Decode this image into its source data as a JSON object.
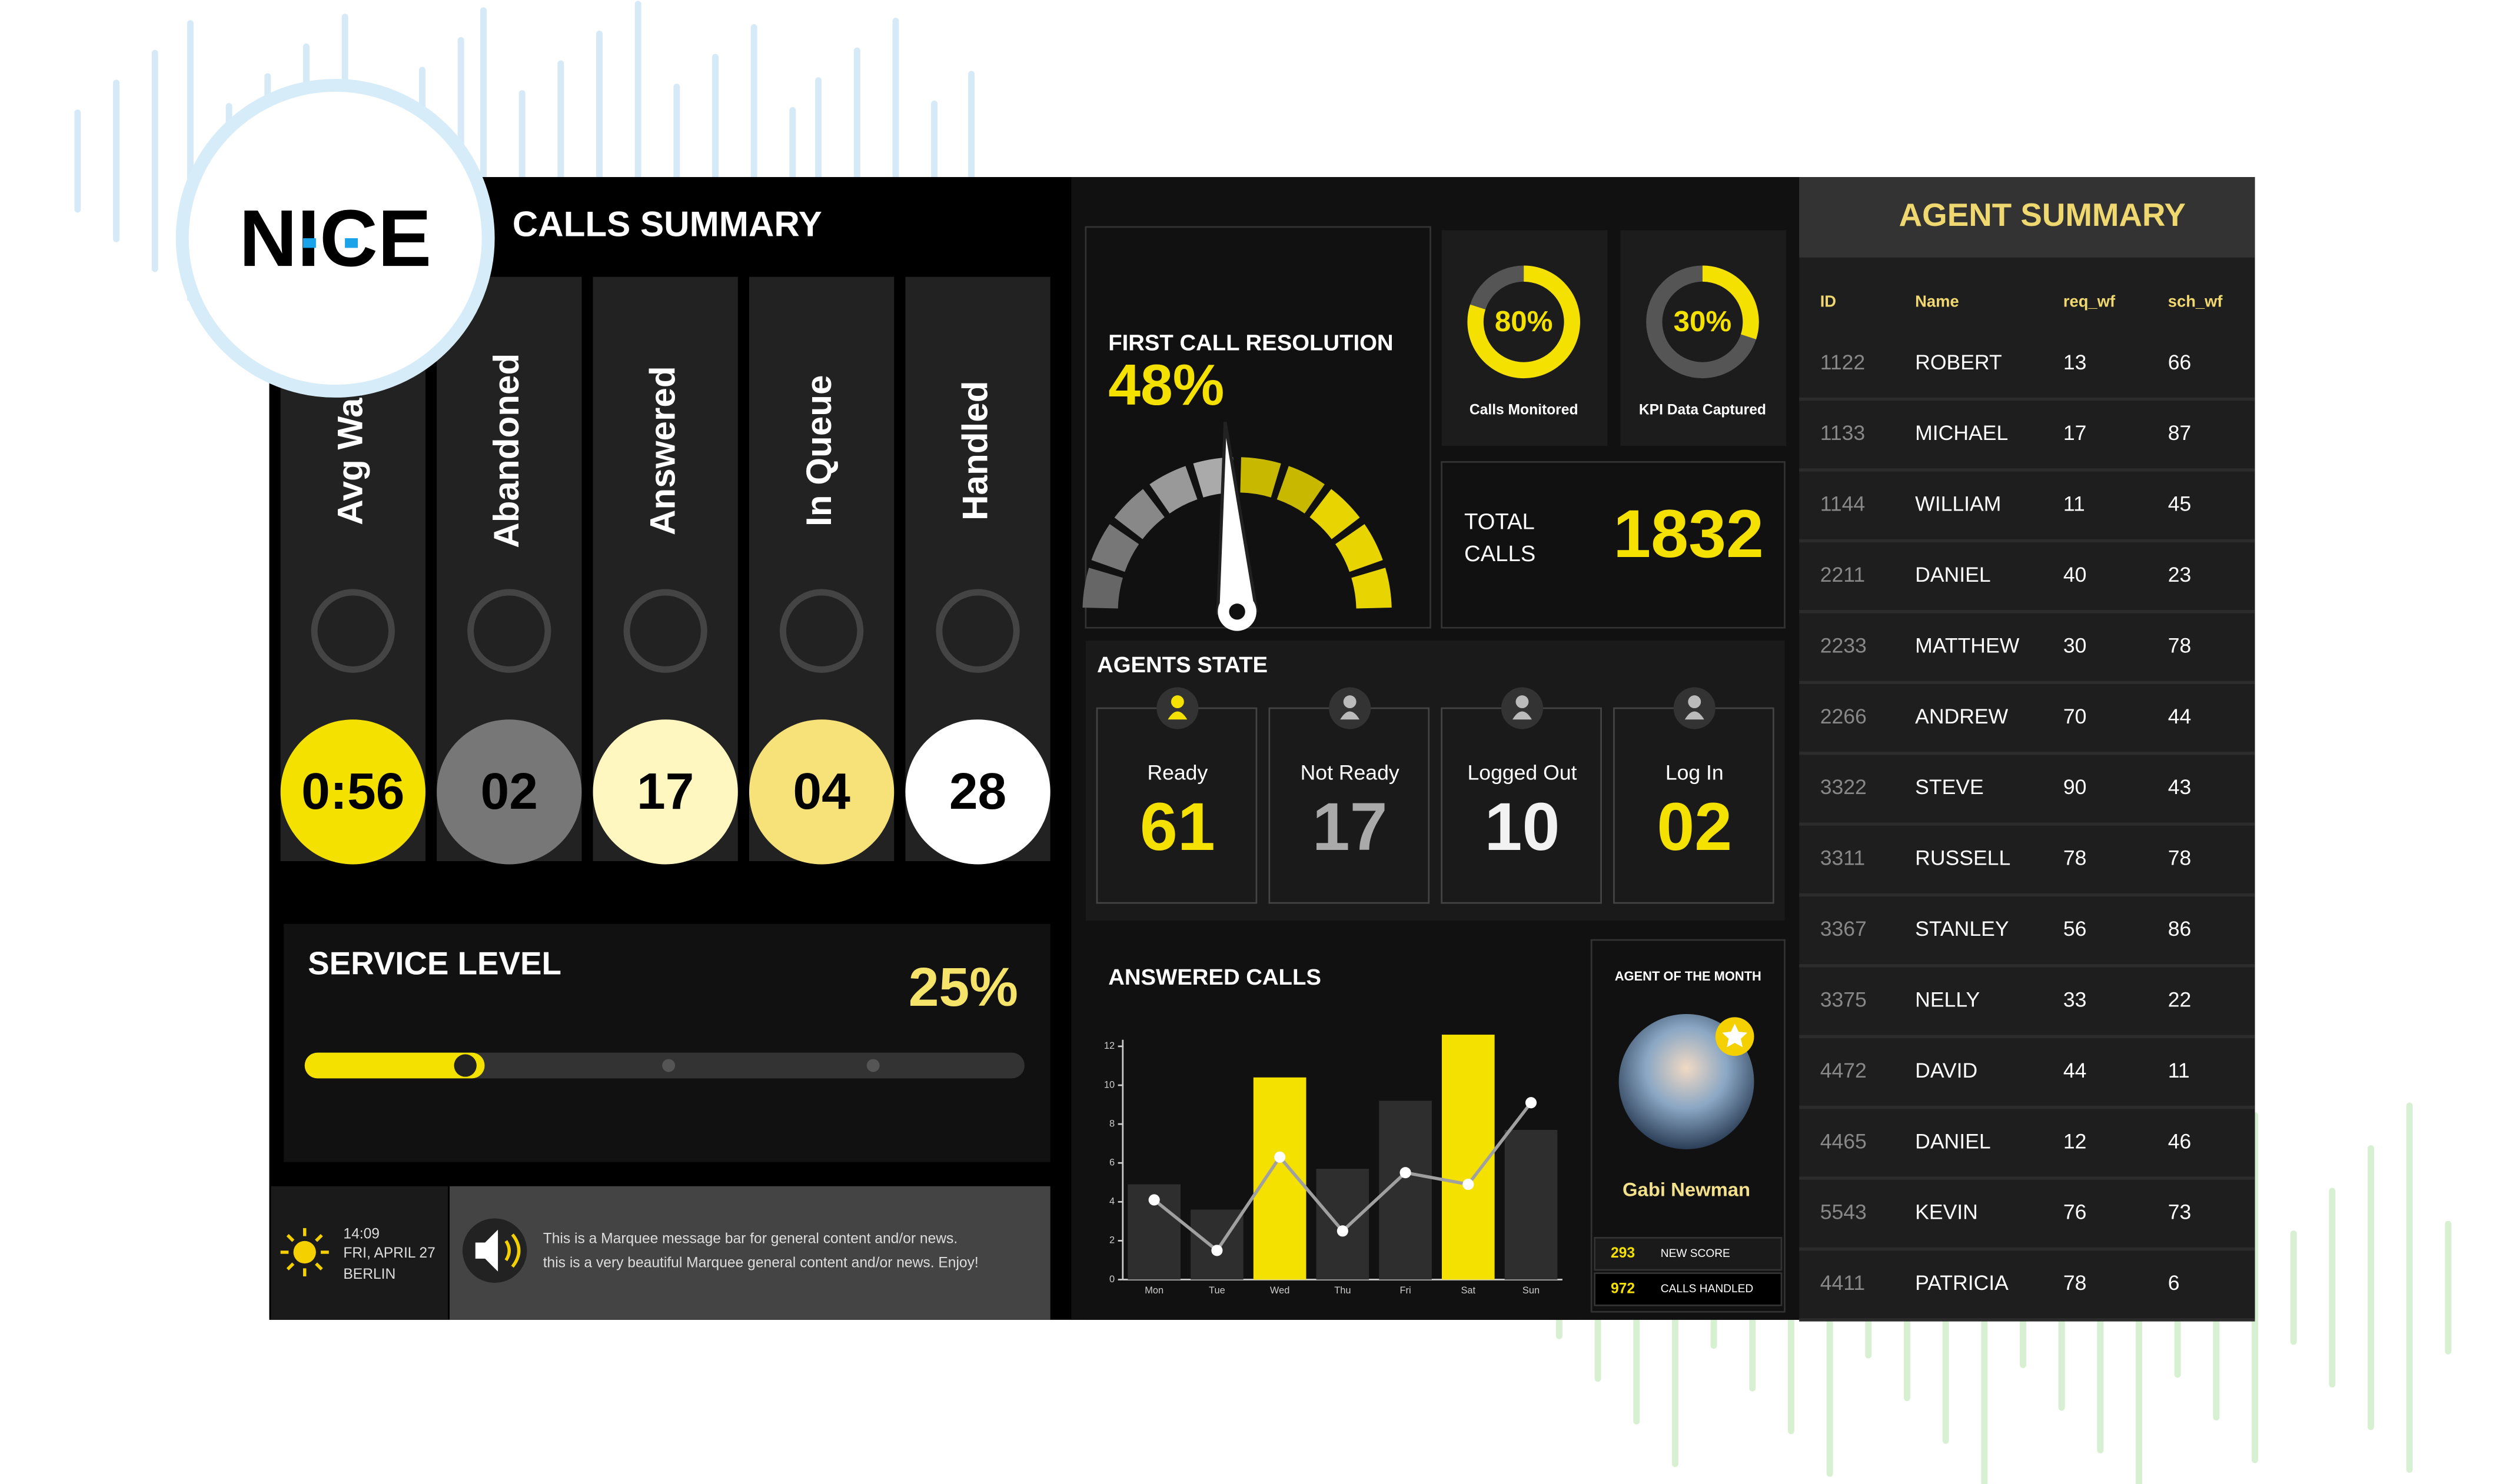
{
  "logo": "NICE",
  "calls_summary": {
    "title": "CALLS SUMMARY",
    "items": [
      {
        "label": "Avg Wait",
        "value": "0:56"
      },
      {
        "label": "Abandoned",
        "value": "02"
      },
      {
        "label": "Answered",
        "value": "17"
      },
      {
        "label": "In Queue",
        "value": "04"
      },
      {
        "label": "Handled",
        "value": "28"
      }
    ]
  },
  "first_call_resolution": {
    "title": "FIRST CALL RESOLUTION",
    "value": 48,
    "value_label": "48%"
  },
  "kpis": {
    "values": [
      80,
      30
    ],
    "value_labels": [
      "80%",
      "30%"
    ],
    "labels": [
      "Calls Monitored",
      "KPI Data Captured"
    ]
  },
  "total_calls": {
    "label_lines": [
      "TOTAL",
      "CALLS"
    ],
    "value": 1832
  },
  "service_level": {
    "title": "SERVICE LEVEL",
    "value": 25,
    "value_label": "25%"
  },
  "agents_state": {
    "title": "AGENTS STATE",
    "items": [
      {
        "label": "Ready",
        "value": "61"
      },
      {
        "label": "Not Ready",
        "value": "17"
      },
      {
        "label": "Logged Out",
        "value": "10"
      },
      {
        "label": "Log In",
        "value": "02"
      }
    ]
  },
  "chart_data": {
    "type": "bar",
    "title": "ANSWERED CALLS",
    "categories": [
      "Mon",
      "Tue",
      "Wed",
      "Thu",
      "Fri",
      "Sat",
      "Sun"
    ],
    "series": [
      {
        "type": "bar",
        "values": [
          4.9,
          3.6,
          10.4,
          5.7,
          9.2,
          12.6,
          7.7
        ],
        "colors": [
          "#2e2e2e",
          "#2e2e2e",
          "#f5e100",
          "#2e2e2e",
          "#2e2e2e",
          "#f5e100",
          "#2e2e2e"
        ]
      },
      {
        "type": "line",
        "color": "#a0a0a0",
        "values": [
          4.1,
          1.5,
          6.3,
          2.5,
          5.5,
          4.9,
          9.1
        ]
      }
    ],
    "ylim": [
      0,
      13
    ],
    "yticks": [
      0,
      2,
      4,
      6,
      8,
      10,
      12
    ]
  },
  "agent_of_the_month": {
    "title": "AGENT OF THE MONTH",
    "name": "Gabi Newman",
    "stats": [
      {
        "value": "293",
        "label": "NEW SCORE"
      },
      {
        "value": "972",
        "label": "CALLS HANDLED"
      }
    ]
  },
  "footer": {
    "time": "14:09",
    "date": "FRI, APRIL 27",
    "city": "BERLIN",
    "marquee": [
      "This is a Marquee message bar for general content and/or news.",
      "this is a very beautiful Marquee general content and/or news. Enjoy!"
    ]
  },
  "agent_summary": {
    "title": "AGENT SUMMARY",
    "columns": [
      "ID",
      "Name",
      "req_wf",
      "sch_wf"
    ],
    "rows": [
      [
        "1122",
        "ROBERT",
        "13",
        "66"
      ],
      [
        "1133",
        "MICHAEL",
        "17",
        "87"
      ],
      [
        "1144",
        "WILLIAM",
        "11",
        "45"
      ],
      [
        "2211",
        "DANIEL",
        "40",
        "23"
      ],
      [
        "2233",
        "MATTHEW",
        "30",
        "78"
      ],
      [
        "2266",
        "ANDREW",
        "70",
        "44"
      ],
      [
        "3322",
        "STEVE",
        "90",
        "43"
      ],
      [
        "3311",
        "RUSSELL",
        "78",
        "78"
      ],
      [
        "3367",
        "STANLEY",
        "56",
        "86"
      ],
      [
        "3375",
        "NELLY",
        "33",
        "22"
      ],
      [
        "4472",
        "DAVID",
        "44",
        "11"
      ],
      [
        "4465",
        "DANIEL",
        "12",
        "46"
      ],
      [
        "5543",
        "KEVIN",
        "76",
        "73"
      ],
      [
        "4411",
        "PATRICIA",
        "78",
        "6"
      ]
    ]
  }
}
